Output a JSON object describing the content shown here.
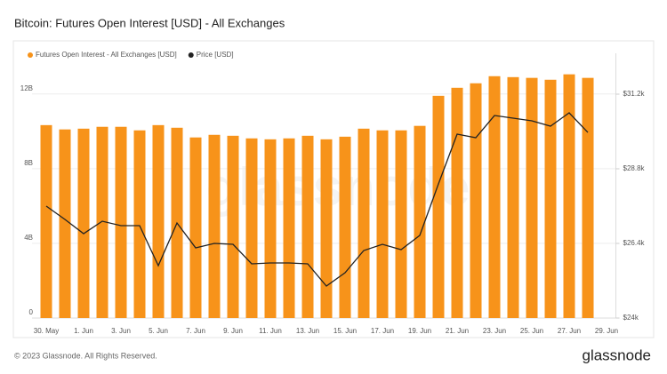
{
  "chart_data": {
    "type": "bar-line",
    "title": "Bitcoin: Futures Open Interest [USD] - All Exchanges",
    "categories": [
      "30. May",
      null,
      "1. Jun",
      null,
      "3. Jun",
      null,
      "5. Jun",
      null,
      "7. Jun",
      null,
      "9. Jun",
      null,
      "11. Jun",
      null,
      "13. Jun",
      null,
      "15. Jun",
      null,
      "17. Jun",
      null,
      "19. Jun",
      null,
      "21. Jun",
      null,
      "23. Jun",
      null,
      "25. Jun",
      null,
      "27. Jun",
      null,
      "29. Jun"
    ],
    "series": [
      {
        "name": "Futures Open Interest - All Exchanges [USD]",
        "color": "#f7931a",
        "type": "bar",
        "values": [
          10330000000,
          10100000000,
          10140000000,
          10240000000,
          10240000000,
          10050000000,
          10330000000,
          10190000000,
          9670000000,
          9810000000,
          9760000000,
          9620000000,
          9570000000,
          9620000000,
          9760000000,
          9570000000,
          9710000000,
          10140000000,
          10050000000,
          10050000000,
          10290000000,
          11900000000,
          12330000000,
          12570000000,
          12950000000,
          12900000000,
          12860000000,
          12760000000,
          13050000000,
          12860000000,
          null
        ]
      },
      {
        "name": "Price [USD]",
        "color": "#222222",
        "type": "line",
        "axis": "y2",
        "values": [
          27600,
          27171,
          26714,
          27114,
          26971,
          26971,
          25686,
          27057,
          26257,
          26400,
          26371,
          25743,
          25771,
          25771,
          25743,
          25029,
          25457,
          26171,
          26371,
          26200,
          26657,
          28314,
          29914,
          29800,
          30514,
          30429,
          30343,
          30171,
          30600,
          29971,
          null
        ]
      }
    ],
    "ylim": [
      0,
      13700000000
    ],
    "yticks": [
      0,
      {
        "value": 4000000000,
        "label": "4B"
      },
      {
        "value": 8000000000,
        "label": "8B"
      },
      {
        "value": 12000000000,
        "label": "12B"
      }
    ],
    "y2lim": [
      24000,
      32229
    ],
    "y2ticks": [
      {
        "value": 24000,
        "label": "$24k"
      },
      {
        "value": 26400,
        "label": "$26.4k"
      },
      {
        "value": 28800,
        "label": "$28.8k"
      },
      {
        "value": 31200,
        "label": "$31.2k"
      }
    ],
    "grid": true,
    "watermark": "glassnode",
    "footer": "© 2023 Glassnode. All Rights Reserved.",
    "brand": "glassnode"
  }
}
